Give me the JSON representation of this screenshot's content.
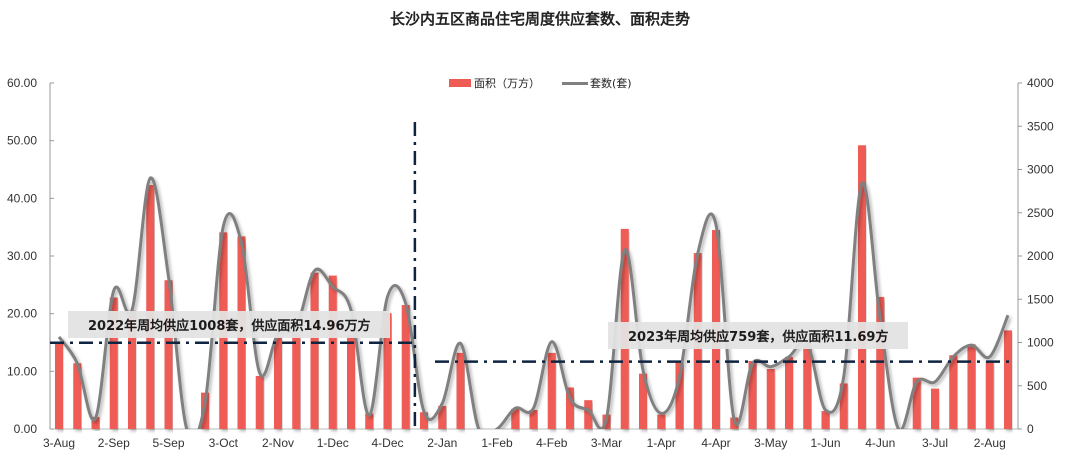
{
  "chart_data": {
    "type": "bar+line",
    "title": "长沙内五区商品住宅周度供应套数、面积走势",
    "tick_labels": [
      "3-Aug",
      "2-Sep",
      "5-Sep",
      "3-Oct",
      "2-Nov",
      "1-Dec",
      "4-Dec",
      "2-Jan",
      "1-Feb",
      "4-Feb",
      "3-Mar",
      "1-Apr",
      "4-Apr",
      "3-May",
      "1-Jun",
      "4-Jun",
      "3-Jul",
      "2-Aug"
    ],
    "tick_every": 3,
    "left_axis": {
      "min": 0,
      "max": 60,
      "step": 10,
      "labels": [
        "0.00",
        "10.00",
        "20.00",
        "30.00",
        "40.00",
        "50.00",
        "60.00"
      ]
    },
    "right_axis": {
      "min": 0,
      "max": 4000,
      "step": 500,
      "labels": [
        "0",
        "500",
        "1000",
        "1500",
        "2000",
        "2500",
        "3000",
        "3500",
        "4000"
      ]
    },
    "series": [
      {
        "name": "面积（万方）",
        "type": "bar",
        "axis": "left",
        "color": "#EF5B55",
        "values": [
          15.1,
          11.4,
          2.1,
          22.8,
          20.5,
          42.3,
          25.8,
          0,
          6.3,
          34.1,
          33.4,
          9.2,
          16.0,
          16.5,
          27.1,
          26.6,
          16.3,
          2.7,
          20.1,
          21.5,
          2.9,
          4.0,
          13.2,
          0,
          0,
          3.5,
          3.3,
          13.2,
          7.2,
          5.0,
          2.5,
          34.7,
          9.6,
          2.5,
          11.8,
          30.5,
          34.5,
          2.0,
          11.8,
          10.4,
          12.5,
          14.5,
          3.1,
          7.9,
          49.2,
          22.9,
          0,
          8.9,
          7.0,
          12.8,
          14.7,
          11.6,
          17.1
        ]
      },
      {
        "name": "套数(套)",
        "type": "line",
        "axis": "right",
        "color": "#808080",
        "values": [
          1065,
          760,
          125,
          1600,
          1375,
          2900,
          1760,
          0,
          300,
          2340,
          2150,
          645,
          1105,
          1180,
          1830,
          1645,
          1375,
          160,
          1530,
          1450,
          200,
          295,
          990,
          0,
          0,
          240,
          240,
          1010,
          355,
          220,
          125,
          2070,
          680,
          180,
          605,
          2030,
          2360,
          105,
          760,
          720,
          835,
          990,
          220,
          605,
          2840,
          1260,
          0,
          545,
          545,
          835,
          970,
          835,
          1315
        ]
      }
    ],
    "annotations": [
      {
        "text": "2022年周均供应1008套，供应面积14.96万方",
        "avg_area": 14.96,
        "avg_units": 1008,
        "from_index": 0,
        "to_index": 19
      },
      {
        "text": "2023年周均供应759套，供应面积11.69方",
        "avg_area": 11.69,
        "avg_units": 759,
        "from_index": 20,
        "to_index": 52
      }
    ],
    "divider_after_index": 19
  }
}
